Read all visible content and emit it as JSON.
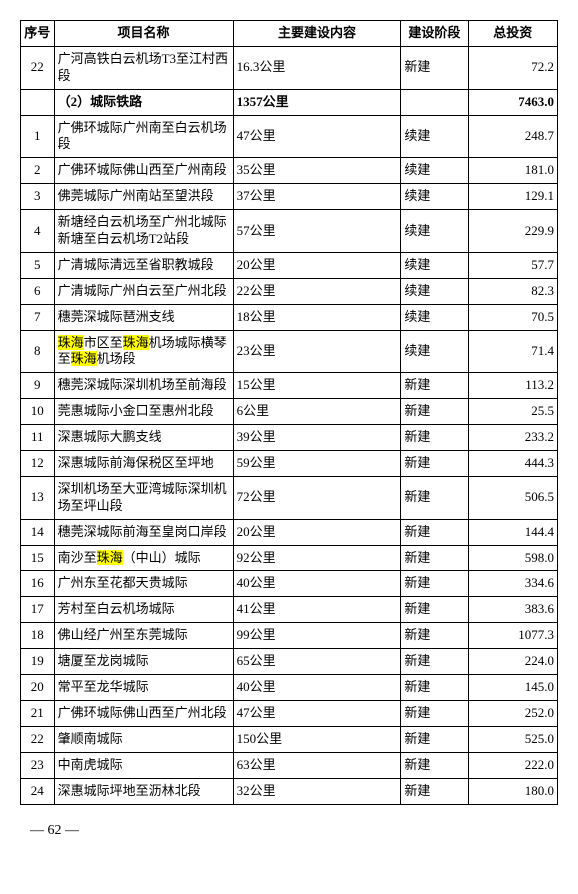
{
  "headers": {
    "seq": "序号",
    "name": "项目名称",
    "content": "主要建设内容",
    "stage": "建设阶段",
    "invest": "总投资"
  },
  "pre_rows": [
    {
      "seq": "22",
      "name": "广河高铁白云机场T3至江村西段",
      "content": "16.3公里",
      "stage": "新建",
      "invest": "72.2"
    }
  ],
  "section": {
    "name": "（2）城际铁路",
    "content": "1357公里",
    "invest": "7463.0"
  },
  "rows": [
    {
      "seq": "1",
      "name": "广佛环城际广州南至白云机场段",
      "content": "47公里",
      "stage": "续建",
      "invest": "248.7"
    },
    {
      "seq": "2",
      "name": "广佛环城际佛山西至广州南段",
      "content": "35公里",
      "stage": "续建",
      "invest": "181.0"
    },
    {
      "seq": "3",
      "name": "佛莞城际广州南站至望洪段",
      "content": "37公里",
      "stage": "续建",
      "invest": "129.1"
    },
    {
      "seq": "4",
      "name": "新塘经白云机场至广州北城际新塘至白云机场T2站段",
      "content": "57公里",
      "stage": "续建",
      "invest": "229.9"
    },
    {
      "seq": "5",
      "name": "广清城际清远至省职教城段",
      "content": "20公里",
      "stage": "续建",
      "invest": "57.7"
    },
    {
      "seq": "6",
      "name": "广清城际广州白云至广州北段",
      "content": "22公里",
      "stage": "续建",
      "invest": "82.3"
    },
    {
      "seq": "7",
      "name": "穗莞深城际琶洲支线",
      "content": "18公里",
      "stage": "续建",
      "invest": "70.5"
    },
    {
      "seq": "8",
      "name_html": true,
      "content": "23公里",
      "stage": "续建",
      "invest": "71.4"
    },
    {
      "seq": "9",
      "name": "穗莞深城际深圳机场至前海段",
      "content": "15公里",
      "stage": "新建",
      "invest": "113.2"
    },
    {
      "seq": "10",
      "name": "莞惠城际小金口至惠州北段",
      "content": "6公里",
      "stage": "新建",
      "invest": "25.5"
    },
    {
      "seq": "11",
      "name": "深惠城际大鹏支线",
      "content": "39公里",
      "stage": "新建",
      "invest": "233.2"
    },
    {
      "seq": "12",
      "name": "深惠城际前海保税区至坪地",
      "content": "59公里",
      "stage": "新建",
      "invest": "444.3"
    },
    {
      "seq": "13",
      "name": "深圳机场至大亚湾城际深圳机场至坪山段",
      "content": "72公里",
      "stage": "新建",
      "invest": "506.5"
    },
    {
      "seq": "14",
      "name": "穗莞深城际前海至皇岗口岸段",
      "content": "20公里",
      "stage": "新建",
      "invest": "144.4"
    },
    {
      "seq": "15",
      "name_html15": true,
      "content": "92公里",
      "stage": "新建",
      "invest": "598.0"
    },
    {
      "seq": "16",
      "name": "广州东至花都天贵城际",
      "content": "40公里",
      "stage": "新建",
      "invest": "334.6"
    },
    {
      "seq": "17",
      "name": "芳村至白云机场城际",
      "content": "41公里",
      "stage": "新建",
      "invest": "383.6"
    },
    {
      "seq": "18",
      "name": "佛山经广州至东莞城际",
      "content": "99公里",
      "stage": "新建",
      "invest": "1077.3"
    },
    {
      "seq": "19",
      "name": "塘厦至龙岗城际",
      "content": "65公里",
      "stage": "新建",
      "invest": "224.0"
    },
    {
      "seq": "20",
      "name": "常平至龙华城际",
      "content": "40公里",
      "stage": "新建",
      "invest": "145.0"
    },
    {
      "seq": "21",
      "name": "广佛环城际佛山西至广州北段",
      "content": "47公里",
      "stage": "新建",
      "invest": "252.0"
    },
    {
      "seq": "22",
      "name": "肇顺南城际",
      "content": "150公里",
      "stage": "新建",
      "invest": "525.0"
    },
    {
      "seq": "23",
      "name": "中南虎城际",
      "content": "63公里",
      "stage": "新建",
      "invest": "222.0"
    },
    {
      "seq": "24",
      "name": "深惠城际坪地至沥林北段",
      "content": "32公里",
      "stage": "新建",
      "invest": "180.0"
    }
  ],
  "row8_name": {
    "p1": "珠海",
    "t1": "市区至",
    "p2": "珠海",
    "t2": "机场城际横琴至",
    "p3": "珠海",
    "t3": "机场段"
  },
  "row15_name": {
    "t1": "南沙至",
    "p1": "珠海",
    "t2": "（中山）城际"
  },
  "page_num": "— 62 —",
  "style": {
    "highlight_color": "#ffff00",
    "border_color": "#000000",
    "font_size_cell": 13,
    "font_size_page": 14
  }
}
